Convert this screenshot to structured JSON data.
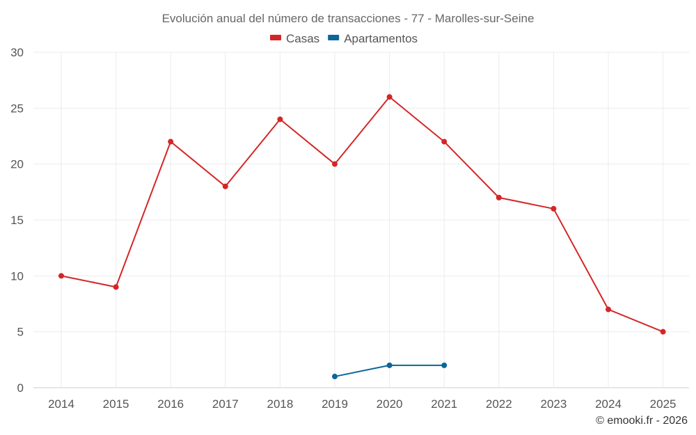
{
  "chart_data": {
    "type": "line",
    "title": "Evolución anual del número de transacciones - 77 - Marolles-sur-Seine",
    "categories": [
      "2014",
      "2015",
      "2016",
      "2017",
      "2018",
      "2019",
      "2020",
      "2021",
      "2022",
      "2023",
      "2024",
      "2025"
    ],
    "series": [
      {
        "name": "Casas",
        "color": "#d32626",
        "values": [
          10,
          9,
          22,
          18,
          24,
          20,
          26,
          22,
          17,
          16,
          7,
          5
        ]
      },
      {
        "name": "Apartamentos",
        "color": "#0b6699",
        "values": [
          null,
          null,
          null,
          null,
          null,
          1,
          2,
          2,
          null,
          null,
          null,
          null
        ]
      }
    ],
    "ylim": [
      0,
      30
    ],
    "yticks": [
      0,
      5,
      10,
      15,
      20,
      25,
      30
    ],
    "grid": true,
    "legend": "top-center",
    "xlabel": "",
    "ylabel": ""
  },
  "footer": "© emooki.fr - 2026"
}
